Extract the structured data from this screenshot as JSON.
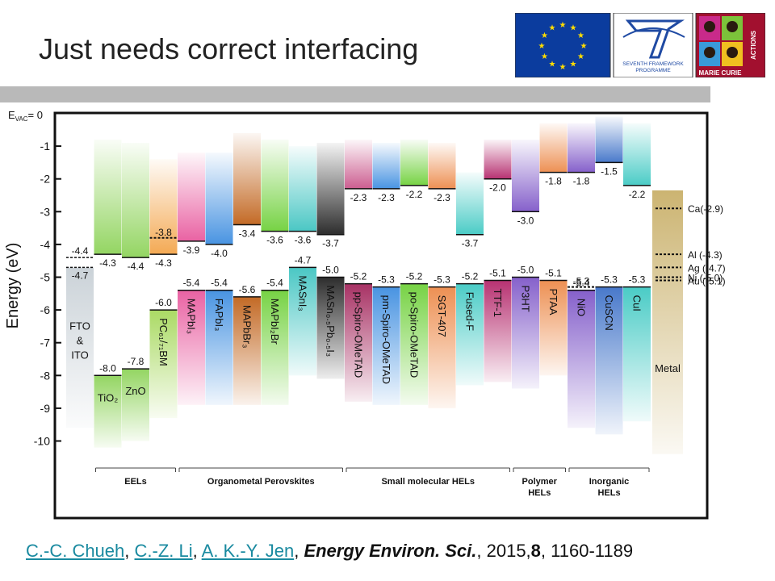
{
  "title": "Just needs correct interfacing",
  "logos": {
    "fp7_line1": "SEVENTH FRAMEWORK",
    "fp7_line2": "PROGRAMME",
    "mc_actions": "ACTIONS",
    "mc_name": "MARIE CURIE"
  },
  "colors": {
    "eu_blue": "#0b3c9e",
    "eu_star": "#ffdd00",
    "fp7_blue": "#1f4aa3",
    "mc_red": "#a2102f"
  },
  "diagram": {
    "ylabel": "Energy (eV)",
    "evac_label": "E",
    "evac_sub": "VAC",
    "evac_value": "= 0",
    "yticks": [
      "-1",
      "-2",
      "-3",
      "-4",
      "-5",
      "-6",
      "-7",
      "-8",
      "-9",
      "-10"
    ],
    "columns": [
      {
        "name": "FTO & ITO",
        "label_lines": [
          "FTO",
          "&",
          "ITO"
        ],
        "vertical": false,
        "cb": -4.4,
        "vb": -4.7,
        "cb_label": "-4.4",
        "vb_label": "-4.7",
        "top": -4.4,
        "bottom": -9.6,
        "color": "#c8d0d6",
        "upper_color": null
      },
      {
        "name": "TiO2",
        "label_lines": [
          "TiO₂"
        ],
        "vertical": false,
        "cb": -4.3,
        "vb": -8.0,
        "cb_label": "-4.3",
        "vb_label": "-8.0",
        "top": -0.8,
        "bottom": -10.2,
        "color": "#8ed35a",
        "upper_color": "#8ed35a"
      },
      {
        "name": "ZnO",
        "label_lines": [
          "ZnO"
        ],
        "vertical": false,
        "cb": -4.4,
        "vb": -7.8,
        "cb_label": "-4.4",
        "vb_label": "-7.8",
        "top": -0.9,
        "bottom": -10.0,
        "color": "#8ed35a",
        "upper_color": "#8ed35a"
      },
      {
        "name": "PC61/71BM",
        "label_lines": [
          "PC₆₁/₇₁BM"
        ],
        "vertical": true,
        "cb": -4.3,
        "vb": -6.0,
        "cb_label": "-4.3",
        "vb_label": "-6.0",
        "top": -1.4,
        "bottom": -9.3,
        "color": "#a6d85c",
        "upper_color": "#f3a54b",
        "dotted": -3.8,
        "dotted_label": "-3.8"
      },
      {
        "name": "MAPbI3",
        "label_lines": [
          "MAPbI₃"
        ],
        "vertical": true,
        "cb": -3.9,
        "vb": -5.4,
        "cb_label": "-3.9",
        "vb_label": "-5.4",
        "top": -1.2,
        "bottom": -8.9,
        "color": "#e85a9e",
        "upper_color": "#e85a9e"
      },
      {
        "name": "FAPbI3",
        "label_lines": [
          "FAPbI₃"
        ],
        "vertical": true,
        "cb": -4.0,
        "vb": -5.4,
        "cb_label": "-4.0",
        "vb_label": "-5.4",
        "top": -1.2,
        "bottom": -8.9,
        "color": "#3f8ee0",
        "upper_color": "#3f8ee0"
      },
      {
        "name": "MAPbBr3",
        "label_lines": [
          "MAPbBr₃"
        ],
        "vertical": true,
        "cb": -3.4,
        "vb": -5.6,
        "cb_label": "-3.4",
        "vb_label": "-5.6",
        "top": -0.6,
        "bottom": -8.9,
        "color": "#c0621a",
        "upper_color": "#c0621a"
      },
      {
        "name": "MAPbI2Br",
        "label_lines": [
          "MAPbI₂Br"
        ],
        "vertical": true,
        "cb": -3.6,
        "vb": -5.4,
        "cb_label": "-3.6",
        "vb_label": "-5.4",
        "top": -0.8,
        "bottom": -8.9,
        "color": "#6fd03a",
        "upper_color": "#6fd03a"
      },
      {
        "name": "MASnI3",
        "label_lines": [
          "MASnI₃"
        ],
        "vertical": true,
        "cb": -3.6,
        "vb": -4.7,
        "cb_label": "-3.6",
        "vb_label": "-4.7",
        "top": -1.0,
        "bottom": -8.0,
        "color": "#41c4c1",
        "upper_color": "#41c4c1"
      },
      {
        "name": "MASn0.5Pb0.5I3",
        "label_lines": [
          "MASn₀.₅Pb₀.₅I₃"
        ],
        "vertical": true,
        "cb": -3.7,
        "vb": -5.0,
        "cb_label": "-3.7",
        "vb_label": "-5.0",
        "top": -0.9,
        "bottom": -8.1,
        "color": "#222222",
        "upper_color": "#222222"
      },
      {
        "name": "pp-Spiro-OMeTAD",
        "label_lines": [
          "pp-Spiro-OMeTAD"
        ],
        "vertical": true,
        "cb": -2.3,
        "vb": -5.2,
        "cb_label": "-2.3",
        "vb_label": "-5.2",
        "top": -0.8,
        "bottom": -8.8,
        "color": "#a3275c",
        "upper_color": "#c9558a"
      },
      {
        "name": "pm-Spiro-OMeTAD",
        "label_lines": [
          "pm-Spiro-OMeTAD"
        ],
        "vertical": true,
        "cb": -2.3,
        "vb": -5.3,
        "cb_label": "-2.3",
        "vb_label": "-5.3",
        "top": -0.9,
        "bottom": -8.9,
        "color": "#3f8ee0",
        "upper_color": "#3f8ee0"
      },
      {
        "name": "po-Spiro-OMeTAD",
        "label_lines": [
          "po-Spiro-OMeTAD"
        ],
        "vertical": true,
        "cb": -2.2,
        "vb": -5.2,
        "cb_label": "-2.2",
        "vb_label": "-5.2",
        "top": -0.8,
        "bottom": -8.9,
        "color": "#6fd03a",
        "upper_color": "#6fd03a"
      },
      {
        "name": "SGT-407",
        "label_lines": [
          "SGT-407"
        ],
        "vertical": true,
        "cb": -2.3,
        "vb": -5.3,
        "cb_label": "-2.3",
        "vb_label": "-5.3",
        "top": -0.9,
        "bottom": -9.0,
        "color": "#ec8a4a",
        "upper_color": "#ec8a4a"
      },
      {
        "name": "Fused-F",
        "label_lines": [
          "Fused-F"
        ],
        "vertical": true,
        "cb": -3.7,
        "vb": -5.2,
        "cb_label": "-3.7",
        "vb_label": "-5.2",
        "top": -1.8,
        "bottom": -8.3,
        "color": "#41c9c3",
        "upper_color": "#41c9c3"
      },
      {
        "name": "TTF-1",
        "label_lines": [
          "TTF-1"
        ],
        "vertical": true,
        "cb": -2.0,
        "vb": -5.1,
        "cb_label": "-2.0",
        "vb_label": "-5.1",
        "top": -0.8,
        "bottom": -8.2,
        "color": "#b3276a",
        "upper_color": "#b3276a"
      },
      {
        "name": "P3HT",
        "label_lines": [
          "P3HT"
        ],
        "vertical": true,
        "cb": -3.0,
        "vb": -5.0,
        "cb_label": "-3.0",
        "vb_label": "-5.0",
        "top": -0.8,
        "bottom": -8.4,
        "color": "#7f58c8",
        "upper_color": "#7f58c8"
      },
      {
        "name": "PTAA",
        "label_lines": [
          "PTAA"
        ],
        "vertical": true,
        "cb": -1.8,
        "vb": -5.1,
        "cb_label": "-1.8",
        "vb_label": "-5.1",
        "top": -0.3,
        "bottom": -8.0,
        "color": "#ec8a4a",
        "upper_color": "#ec8a4a"
      },
      {
        "name": "NiO",
        "label_lines": [
          "NiO"
        ],
        "vertical": true,
        "cb": -1.8,
        "vb": -5.4,
        "cb_label": "-1.8",
        "vb_label": "-5.4",
        "top": -0.3,
        "bottom": -9.6,
        "color": "#7f58c8",
        "upper_color": "#7f58c8",
        "dotted": -5.3,
        "dotted_label": "-5.3"
      },
      {
        "name": "CuSCN",
        "label_lines": [
          "CuSCN"
        ],
        "vertical": true,
        "cb": -1.5,
        "vb": -5.3,
        "cb_label": "-1.5",
        "vb_label": "-5.3",
        "top": -0.1,
        "bottom": -9.8,
        "color": "#3f72c8",
        "upper_color": "#3f72c8"
      },
      {
        "name": "CuI",
        "label_lines": [
          "CuI"
        ],
        "vertical": true,
        "cb": -2.2,
        "vb": -5.3,
        "cb_label": "-2.2",
        "vb_label": "-5.3",
        "top": -0.3,
        "bottom": -9.4,
        "color": "#41c9c3",
        "upper_color": "#41c9c3"
      }
    ],
    "metal": {
      "label": "Metal",
      "top": -2.35,
      "bottom": -10.4,
      "levels": [
        {
          "label": "Ca(-2.9)",
          "value": -2.9
        },
        {
          "label": "Al (-4.3)",
          "value": -4.3
        },
        {
          "label": "Ag (-4.7)",
          "value": -4.7
        },
        {
          "label": "Ni (-5.0)",
          "value": -5.0
        },
        {
          "label": "Au (-5.1)",
          "value": -5.1
        }
      ]
    },
    "groups": [
      {
        "label": "EELs",
        "lines": [
          "EELs"
        ],
        "from": 1,
        "to": 3
      },
      {
        "label": "Organometal Perovskites",
        "lines": [
          "Organometal Perovskites"
        ],
        "from": 4,
        "to": 9
      },
      {
        "label": "Small molecular HELs",
        "lines": [
          "Small molecular HELs"
        ],
        "from": 10,
        "to": 15
      },
      {
        "label": "Polymer HELs",
        "lines": [
          "Polymer",
          "HELs"
        ],
        "from": 16,
        "to": 17
      },
      {
        "label": "Inorganic HELs",
        "lines": [
          "Inorganic",
          "HELs"
        ],
        "from": 18,
        "to": 20
      }
    ]
  },
  "citation": {
    "author1": "C.-C. Chueh",
    "author2": "C.-Z. Li",
    "author3": "A. K.-Y. Jen",
    "sep": ", ",
    "journal": "Energy Environ. Sci.",
    "year": ", 2015,",
    "volume": "8",
    "pages": ", 1160-1189"
  }
}
